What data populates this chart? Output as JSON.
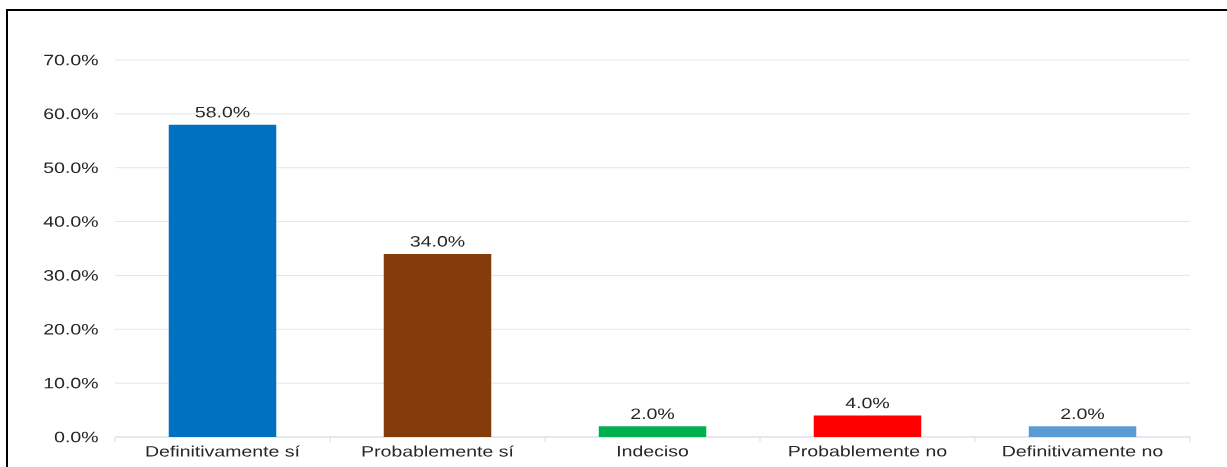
{
  "chart_data": {
    "type": "bar",
    "categories": [
      "Definitivamente sí",
      "Probablemente sí",
      "Indeciso",
      "Probablemente no",
      "Definitivamente no"
    ],
    "values": [
      58,
      34,
      2,
      4,
      2
    ],
    "colors": [
      "#0070c0",
      "#843c0c",
      "#00b050",
      "#ff0000",
      "#5b9bd5"
    ],
    "value_labels": [
      "58.0%",
      "34.0%",
      "2.0%",
      "4.0%",
      "2.0%"
    ],
    "ylim": [
      0,
      70
    ],
    "yticks": [
      {
        "value": 0,
        "label": "0.0%"
      },
      {
        "value": 10,
        "label": "10.0%"
      },
      {
        "value": 20,
        "label": "20.0%"
      },
      {
        "value": 30,
        "label": "30.0%"
      },
      {
        "value": 40,
        "label": "40.0%"
      },
      {
        "value": 50,
        "label": "50.0%"
      },
      {
        "value": 60,
        "label": "60.0%"
      },
      {
        "value": 70,
        "label": "70.0%"
      }
    ],
    "grid": "y"
  }
}
